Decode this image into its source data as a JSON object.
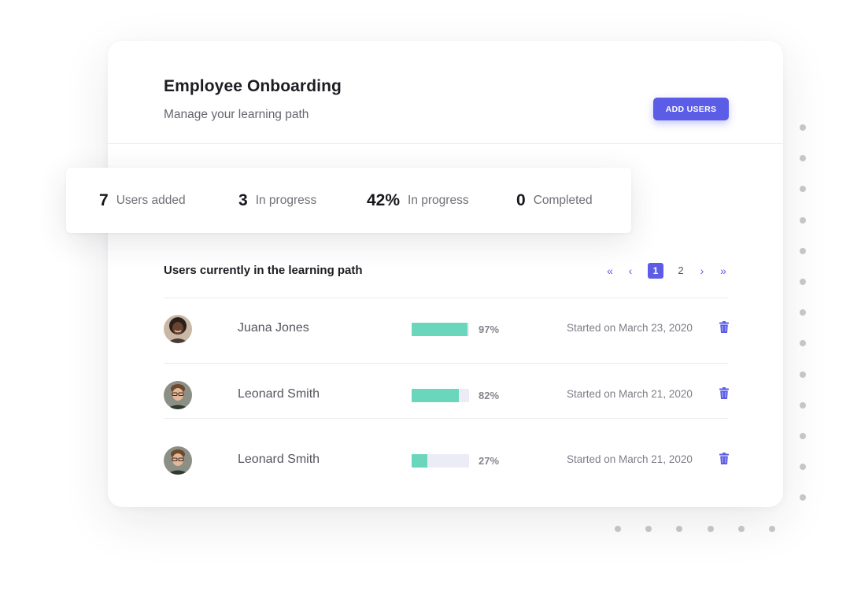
{
  "header": {
    "title": "Employee Onboarding",
    "subtitle": "Manage your learning path",
    "add_users_label": "ADD USERS"
  },
  "stats": [
    {
      "value": "7",
      "label": "Users added"
    },
    {
      "value": "3",
      "label": "In progress"
    },
    {
      "value": "42%",
      "label": "In progress"
    },
    {
      "value": "0",
      "label": "Completed"
    }
  ],
  "list": {
    "title": "Users currently in the learning path",
    "pager": {
      "first": "«",
      "prev": "‹",
      "pages": [
        "1",
        "2"
      ],
      "current": "1",
      "next": "›",
      "last": "»"
    },
    "rows": [
      {
        "name": "Juana Jones",
        "progress": 97,
        "progress_label": "97%",
        "started": "Started on March 23, 2020",
        "avatar": "avatar-juana"
      },
      {
        "name": "Leonard Smith",
        "progress": 82,
        "progress_label": "82%",
        "started": "Started on March 21, 2020",
        "avatar": "avatar-leonard"
      },
      {
        "name": "Leonard Smith",
        "progress": 27,
        "progress_label": "27%",
        "started": "Started on March 21, 2020",
        "avatar": "avatar-leonard"
      }
    ]
  },
  "colors": {
    "accent": "#5b5de6",
    "progress_fill": "#6ad7bd",
    "progress_track": "#ebecf6"
  }
}
